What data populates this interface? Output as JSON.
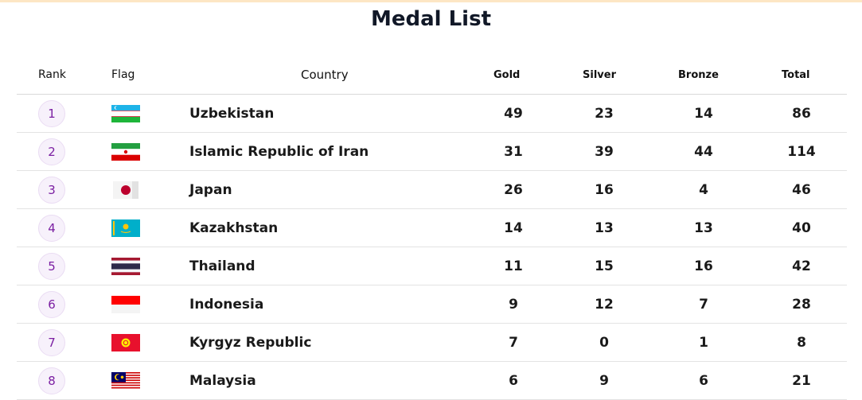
{
  "page": {
    "title": "Medal List"
  },
  "table": {
    "headers": {
      "rank": "Rank",
      "flag": "Flag",
      "country": "Country",
      "gold": "Gold",
      "silver": "Silver",
      "bronze": "Bronze",
      "total": "Total"
    },
    "rows": [
      {
        "rank": "1",
        "country": "Uzbekistan",
        "flag_icon": "uzbekistan-flag-icon",
        "gold": "49",
        "silver": "23",
        "bronze": "14",
        "total": "86"
      },
      {
        "rank": "2",
        "country": "Islamic Republic of Iran",
        "flag_icon": "iran-flag-icon",
        "gold": "31",
        "silver": "39",
        "bronze": "44",
        "total": "114"
      },
      {
        "rank": "3",
        "country": "Japan",
        "flag_icon": "japan-flag-icon",
        "gold": "26",
        "silver": "16",
        "bronze": "4",
        "total": "46"
      },
      {
        "rank": "4",
        "country": "Kazakhstan",
        "flag_icon": "kazakhstan-flag-icon",
        "gold": "14",
        "silver": "13",
        "bronze": "13",
        "total": "40"
      },
      {
        "rank": "5",
        "country": "Thailand",
        "flag_icon": "thailand-flag-icon",
        "gold": "11",
        "silver": "15",
        "bronze": "16",
        "total": "42"
      },
      {
        "rank": "6",
        "country": "Indonesia",
        "flag_icon": "indonesia-flag-icon",
        "gold": "9",
        "silver": "12",
        "bronze": "7",
        "total": "28"
      },
      {
        "rank": "7",
        "country": "Kyrgyz Republic",
        "flag_icon": "kyrgyz-flag-icon",
        "gold": "7",
        "silver": "0",
        "bronze": "1",
        "total": "8"
      },
      {
        "rank": "8",
        "country": "Malaysia",
        "flag_icon": "malaysia-flag-icon",
        "gold": "6",
        "silver": "9",
        "bronze": "6",
        "total": "21"
      }
    ]
  },
  "colors": {
    "rank_text": "#7b1fa2",
    "rank_bg": "#f7f1fb",
    "top_strip": "#fde6c4"
  }
}
